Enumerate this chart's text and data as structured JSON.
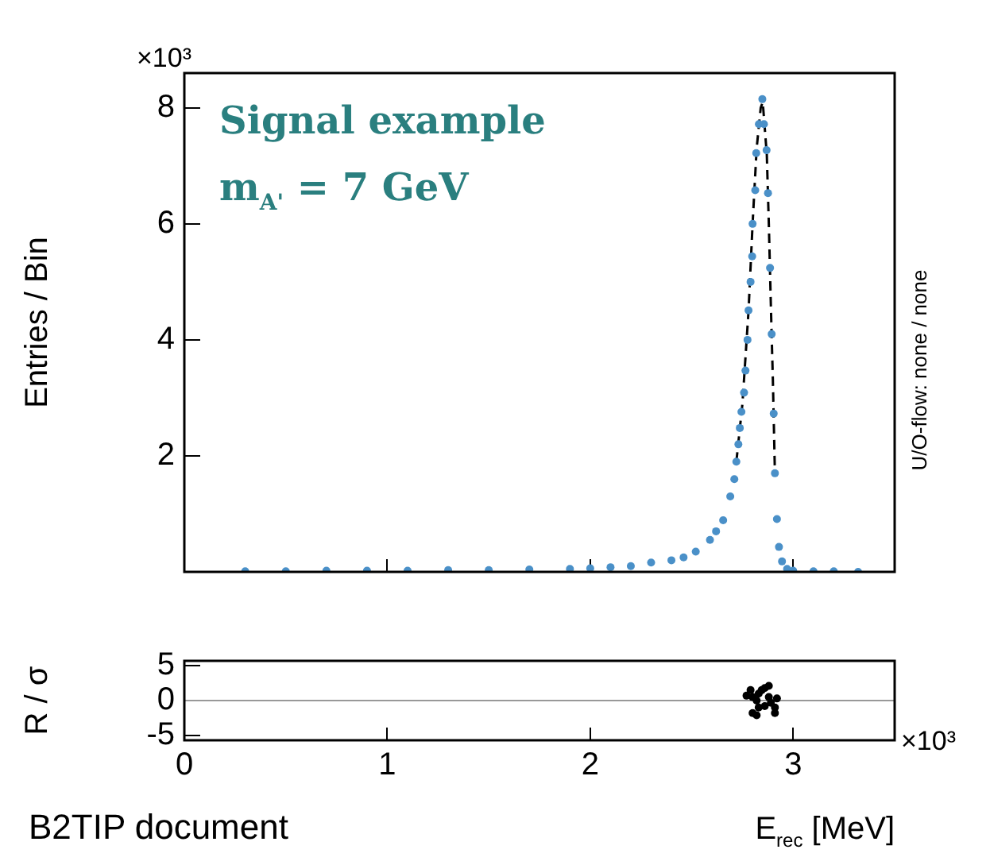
{
  "chart_data": [
    {
      "type": "scatter",
      "ylabel": "Entries / Bin",
      "xlim": [
        0,
        3.5
      ],
      "xticks": [
        0,
        1,
        2,
        3
      ],
      "ylim": [
        0,
        8.6
      ],
      "yticks": [
        2,
        4,
        6,
        8
      ],
      "tick_labels": "y",
      "marker": "circle",
      "annotations": [
        "×10³",
        "Signal example",
        "m$_{A'}$ = 7 GeV",
        "U/O-flow: none / none"
      ],
      "series": [
        {
          "type": "scatter",
          "color": "#4a90c8",
          "x": [
            0.3,
            0.5,
            0.7,
            0.9,
            1.1,
            1.3,
            1.5,
            1.7,
            1.9,
            2.0,
            2.1,
            2.2,
            2.3,
            2.4,
            2.46,
            2.52,
            2.59,
            2.62,
            2.655,
            2.69,
            2.71,
            2.72,
            2.73,
            2.737,
            2.745,
            2.758,
            2.765,
            2.775,
            2.78,
            2.79,
            2.798,
            2.8,
            2.813,
            2.818,
            2.831,
            2.848,
            2.856,
            2.869,
            2.876,
            2.886,
            2.894,
            2.904,
            2.91,
            2.92,
            2.93,
            2.945,
            2.97,
            3.0,
            3.1,
            3.2,
            3.32
          ],
          "values": [
            0.01,
            0.01,
            0.02,
            0.02,
            0.02,
            0.03,
            0.03,
            0.04,
            0.05,
            0.06,
            0.08,
            0.1,
            0.16,
            0.2,
            0.25,
            0.35,
            0.55,
            0.7,
            0.89,
            1.3,
            1.6,
            1.9,
            2.2,
            2.48,
            2.76,
            3.09,
            3.47,
            4.0,
            4.51,
            5.0,
            5.44,
            6.0,
            6.58,
            7.22,
            7.72,
            8.15,
            7.72,
            7.27,
            6.53,
            5.24,
            4.1,
            2.73,
            1.7,
            0.91,
            0.43,
            0.18,
            0.05,
            0.02,
            0.01,
            0.01,
            0
          ]
        },
        {
          "type": "line",
          "color": "#000000",
          "line_style": "dashed",
          "marker": "none",
          "x": [
            2.72,
            2.75,
            2.78,
            2.8,
            2.82,
            2.84,
            2.85,
            2.87,
            2.88,
            2.89,
            2.9,
            2.91
          ],
          "values": [
            1.9,
            2.9,
            4.5,
            6.0,
            7.3,
            8.0,
            8.1,
            7.2,
            6.0,
            4.6,
            3.3,
            1.7
          ]
        }
      ]
    },
    {
      "type": "scatter",
      "ylabel": "R / σ",
      "xlabel": "E$_{rec}$ [MeV]",
      "xlim": [
        0,
        3.5
      ],
      "xticks": [
        0,
        1,
        2,
        3
      ],
      "ylim": [
        -5.7,
        5.7
      ],
      "yticks": [
        -5,
        0,
        5
      ],
      "marker": "circle",
      "annotations": [
        "×10³",
        "B2TIP document"
      ],
      "ref_lines": [
        {
          "axis": "y",
          "value": 0,
          "color": "#999999"
        }
      ],
      "series": [
        {
          "type": "scatter",
          "color": "#000000",
          "x": [
            2.79,
            2.8,
            2.77,
            2.83,
            2.86,
            2.82,
            2.88,
            2.89,
            2.86,
            2.83,
            2.8,
            2.82,
            2.91,
            2.91,
            2.92,
            2.88,
            2.845
          ],
          "values": [
            1.5,
            0.5,
            0.7,
            1.0,
            1.8,
            0,
            0.5,
            -0.3,
            -0.8,
            -1.0,
            -1.8,
            -2.1,
            -1.0,
            -1.8,
            0.3,
            2.1,
            1.5
          ]
        }
      ]
    }
  ]
}
